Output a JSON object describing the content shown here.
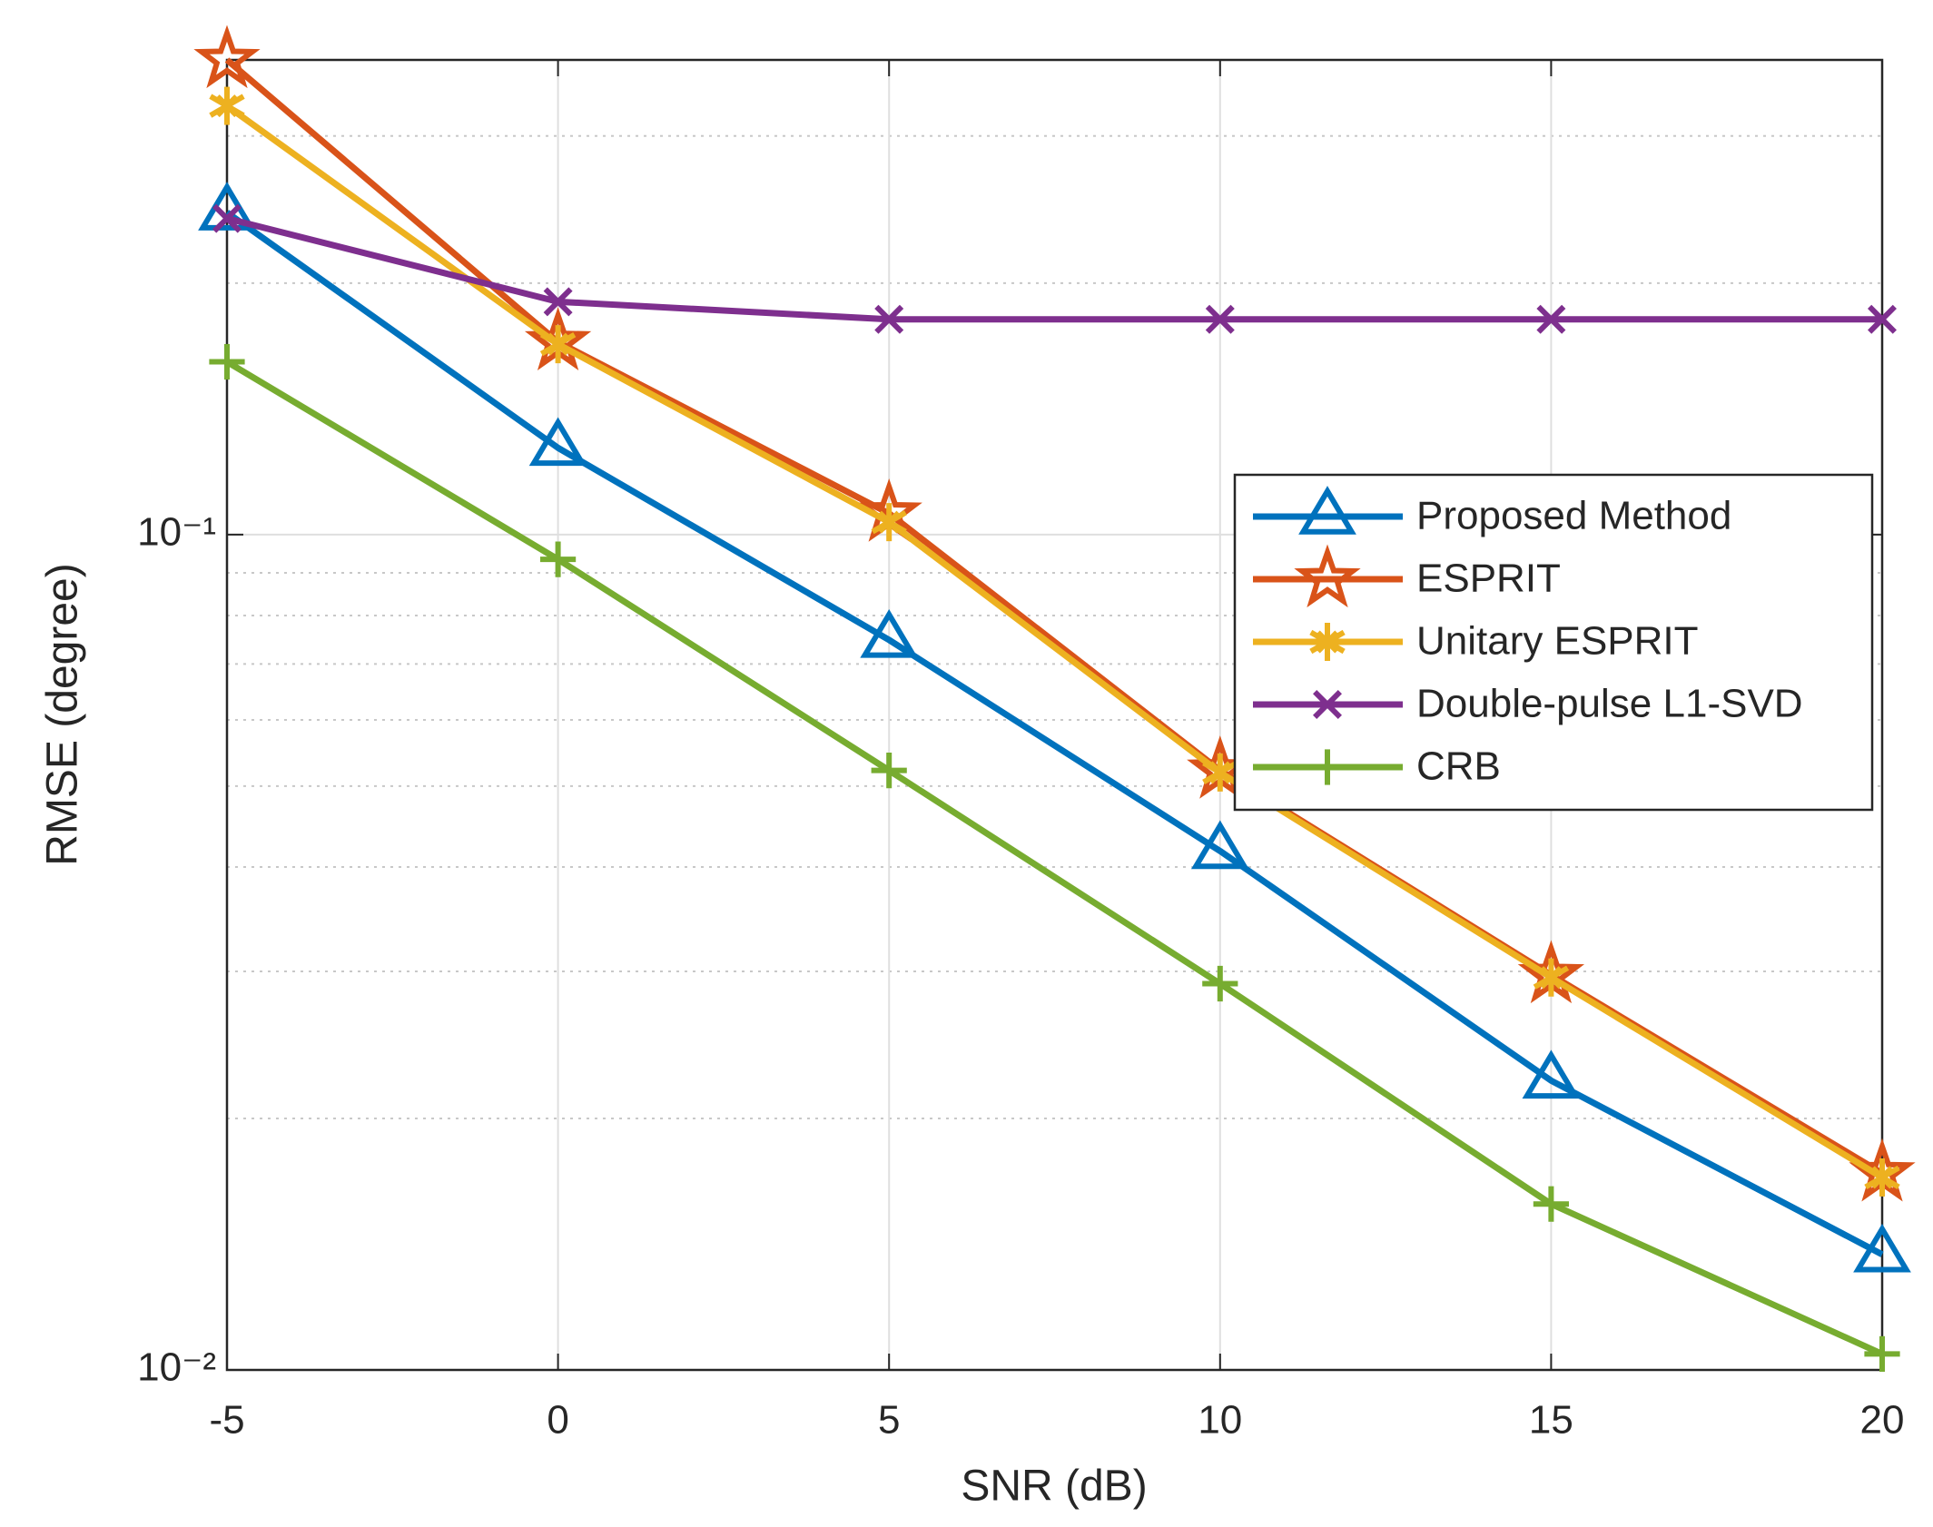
{
  "chart_data": {
    "type": "line",
    "x_label": "SNR (dB)",
    "y_label": "RMSE (degree)",
    "x": [
      -5,
      0,
      5,
      10,
      15,
      20
    ],
    "xlim": [
      -5,
      20
    ],
    "xticks": [
      -5,
      0,
      5,
      10,
      15,
      20
    ],
    "ylim": [
      0.01,
      0.37
    ],
    "yscale": "log",
    "yticks": [
      {
        "value": 0.01,
        "label": "10⁻²"
      },
      {
        "value": 0.1,
        "label": "10⁻¹"
      }
    ],
    "grid": true,
    "minor_grid": true,
    "legend_position": "east",
    "series": [
      {
        "name": "Proposed Method",
        "color": "#0072BD",
        "marker": "triangle",
        "values": [
          0.243,
          0.127,
          0.0748,
          0.0418,
          0.0222,
          0.01375
        ]
      },
      {
        "name": "ESPRIT",
        "color": "#D95319",
        "marker": "pentagram",
        "values": [
          0.37,
          0.17,
          0.106,
          0.0522,
          0.0297,
          0.0172
        ]
      },
      {
        "name": "Unitary ESPRIT",
        "color": "#EDB120",
        "marker": "asterisk",
        "values": [
          0.326,
          0.169,
          0.1035,
          0.0519,
          0.0295,
          0.017
        ]
      },
      {
        "name": "Double-pulse L1-SVD",
        "color": "#7E2F8E",
        "marker": "x",
        "values": [
          0.239,
          0.19,
          0.181,
          0.181,
          0.181,
          0.181
        ]
      },
      {
        "name": "CRB",
        "color": "#77AC30",
        "marker": "plus",
        "values": [
          0.161,
          0.0934,
          0.0522,
          0.029,
          0.0158,
          0.01045
        ]
      }
    ]
  }
}
